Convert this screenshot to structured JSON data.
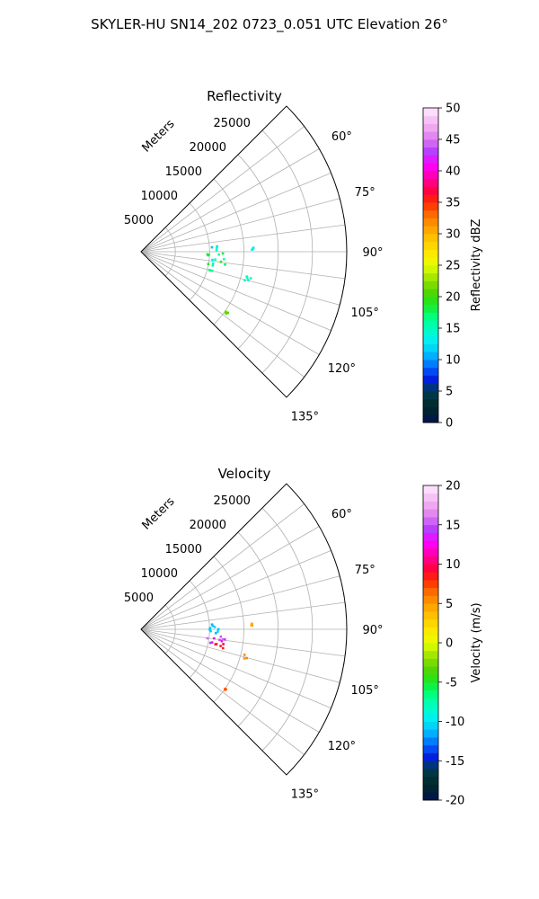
{
  "figure": {
    "suptitle": "SKYLER-HU  SN14_202  0723_0.051 UTC Elevation 26°"
  },
  "chart_data": [
    {
      "type": "polar-sector-scatter",
      "title": "Reflectivity",
      "radial_label": "Meters",
      "theta_range_deg": [
        45,
        135
      ],
      "theta_zero": "north-clockwise",
      "r_range": [
        0,
        30000
      ],
      "r_ticks": [
        5000,
        10000,
        15000,
        20000,
        25000
      ],
      "theta_ticks": [
        "60°",
        "75°",
        "90°",
        "105°",
        "120°",
        "135°"
      ],
      "grid": true,
      "colorbar": {
        "label": "Reflectivity dBZ",
        "vmin": 0,
        "vmax": 50,
        "ticks": [
          0,
          5,
          10,
          15,
          20,
          25,
          30,
          35,
          40,
          45,
          50
        ]
      },
      "echo_regions": [
        {
          "theta_deg": [
            85,
            90
          ],
          "r": [
            10000,
            11500
          ],
          "value_range": [
            10,
            16
          ]
        },
        {
          "theta_deg": [
            90,
            97
          ],
          "r": [
            9500,
            12500
          ],
          "value_range": [
            12,
            19
          ]
        },
        {
          "theta_deg": [
            97,
            103
          ],
          "r": [
            9000,
            12500
          ],
          "value_range": [
            14,
            22
          ]
        },
        {
          "theta_deg": [
            103,
            106
          ],
          "r": [
            9500,
            11000
          ],
          "value_range": [
            13,
            17
          ]
        },
        {
          "theta_deg": [
            88,
            89
          ],
          "r": [
            16000,
            16500
          ],
          "value_range": [
            12,
            14
          ]
        },
        {
          "theta_deg": [
            103,
            106
          ],
          "r": [
            15500,
            16500
          ],
          "value_range": [
            13,
            16
          ]
        },
        {
          "theta_deg": [
            125,
            126
          ],
          "r": [
            15000,
            15500
          ],
          "value_range": [
            20,
            22
          ]
        }
      ]
    },
    {
      "type": "polar-sector-scatter",
      "title": "Velocity",
      "radial_label": "Meters",
      "theta_range_deg": [
        45,
        135
      ],
      "theta_zero": "north-clockwise",
      "r_range": [
        0,
        30000
      ],
      "r_ticks": [
        5000,
        10000,
        15000,
        20000,
        25000
      ],
      "theta_ticks": [
        "60°",
        "75°",
        "90°",
        "105°",
        "120°",
        "135°"
      ],
      "grid": true,
      "colorbar": {
        "label": "Velocity (m/s)",
        "vmin": -20,
        "vmax": 20,
        "ticks": [
          -20,
          -15,
          -10,
          -5,
          0,
          5,
          10,
          15,
          20
        ]
      },
      "echo_regions": [
        {
          "theta_deg": [
            84,
            90
          ],
          "r": [
            10000,
            11500
          ],
          "value_range": [
            -12,
            -10
          ]
        },
        {
          "theta_deg": [
            90,
            96
          ],
          "r": [
            10000,
            11500
          ],
          "value_range": [
            -14,
            -8
          ]
        },
        {
          "theta_deg": [
            93,
            99
          ],
          "r": [
            11500,
            12500
          ],
          "value_range": [
            10,
            16
          ]
        },
        {
          "theta_deg": [
            97,
            103
          ],
          "r": [
            9500,
            11000
          ],
          "value_range": [
            12,
            16
          ]
        },
        {
          "theta_deg": [
            100,
            105
          ],
          "r": [
            11000,
            12500
          ],
          "value_range": [
            8,
            11
          ]
        },
        {
          "theta_deg": [
            87,
            88
          ],
          "r": [
            16000,
            16500
          ],
          "value_range": [
            3,
            5
          ]
        },
        {
          "theta_deg": [
            103,
            106
          ],
          "r": [
            15500,
            16500
          ],
          "value_range": [
            3,
            6
          ]
        },
        {
          "theta_deg": [
            125,
            126
          ],
          "r": [
            15000,
            15500
          ],
          "value_range": [
            6,
            8
          ]
        }
      ]
    }
  ]
}
